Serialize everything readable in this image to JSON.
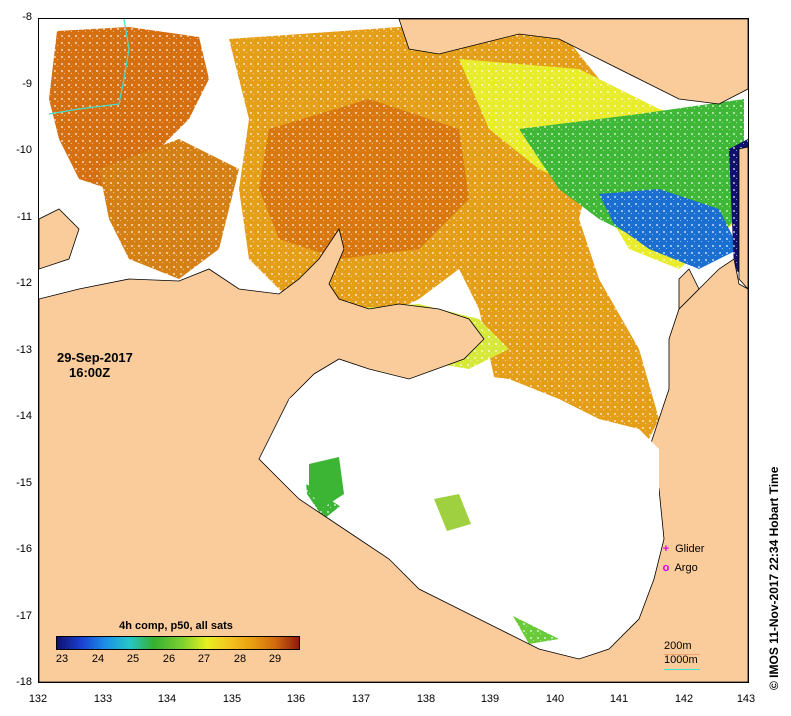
{
  "map": {
    "lon_ticks": [
      "132",
      "133",
      "134",
      "135",
      "136",
      "137",
      "138",
      "139",
      "140",
      "141",
      "142",
      "143"
    ],
    "lat_ticks": [
      "-8",
      "-9",
      "-10",
      "-11",
      "-12",
      "-13",
      "-14",
      "-15",
      "-16",
      "-17",
      "-18"
    ],
    "lon_range": [
      132,
      143
    ],
    "lat_range": [
      -18,
      -8
    ],
    "land_color": "#facc9c",
    "nodata_color": "#ffffff",
    "isobath_color": "#40e0d0"
  },
  "date_label": "29-Sep-2017",
  "time_label": "16:00Z",
  "colorbar": {
    "title": "4h comp, p50, all sats",
    "ticks": [
      "23",
      "24",
      "25",
      "26",
      "27",
      "28",
      "29"
    ],
    "range": [
      22.5,
      29.5
    ]
  },
  "legend": {
    "glider_marker": "+",
    "glider": "Glider",
    "argo_marker": "o",
    "argo": "Argo"
  },
  "scale_legend": {
    "depth1": "200m",
    "depth2": "1000m"
  },
  "copyright": "© IMOS 11-Nov-2017 22:34 Hobart Time",
  "colors": {
    "warm": "#e39a12",
    "hot": "#c9630e",
    "mid": "#f2c428",
    "yellow": "#e6f229",
    "green": "#45c030",
    "blue": "#1a50c8",
    "navy": "#101070"
  }
}
